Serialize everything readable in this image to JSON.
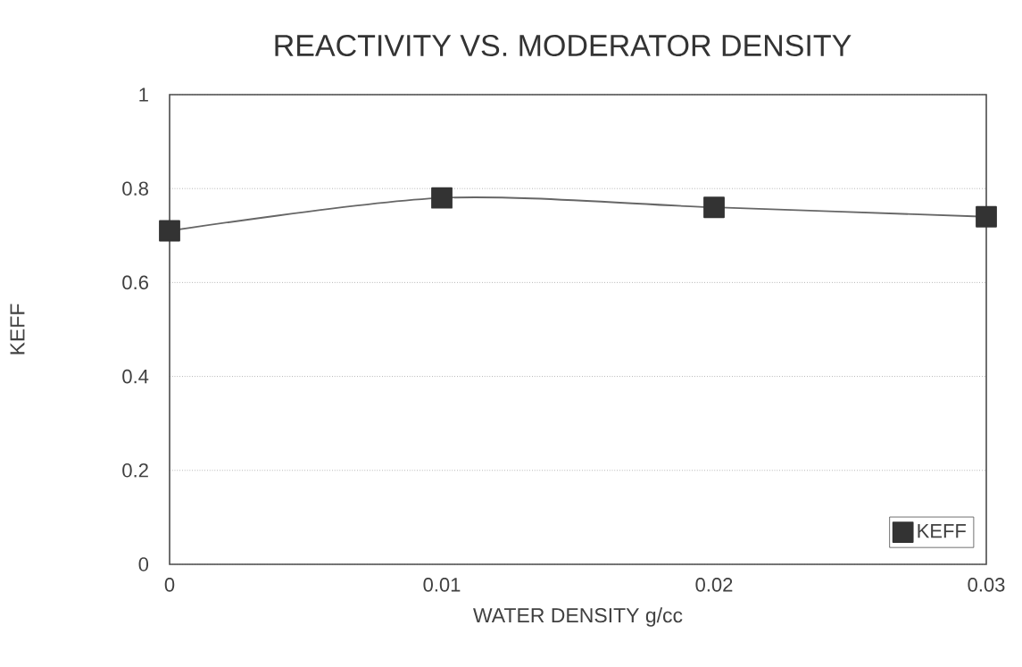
{
  "chart_data": {
    "type": "line",
    "title": "REACTIVITY VS. MODERATOR DENSITY",
    "xlabel": "WATER DENSITY g/cc",
    "ylabel": "KEFF",
    "x": [
      0,
      0.01,
      0.02,
      0.03
    ],
    "series": [
      {
        "name": "KEFF",
        "color": "#333333",
        "values": [
          0.71,
          0.78,
          0.76,
          0.74
        ]
      }
    ],
    "xlim": [
      0,
      0.03
    ],
    "xticks": [
      0,
      0.01,
      0.02,
      0.03
    ],
    "ylim": [
      0,
      1
    ],
    "yticks": [
      0,
      0.2,
      0.4,
      0.6,
      0.8,
      1
    ],
    "grid": "y",
    "legend": "bottom right",
    "marker": "square",
    "line_style": "solid"
  }
}
